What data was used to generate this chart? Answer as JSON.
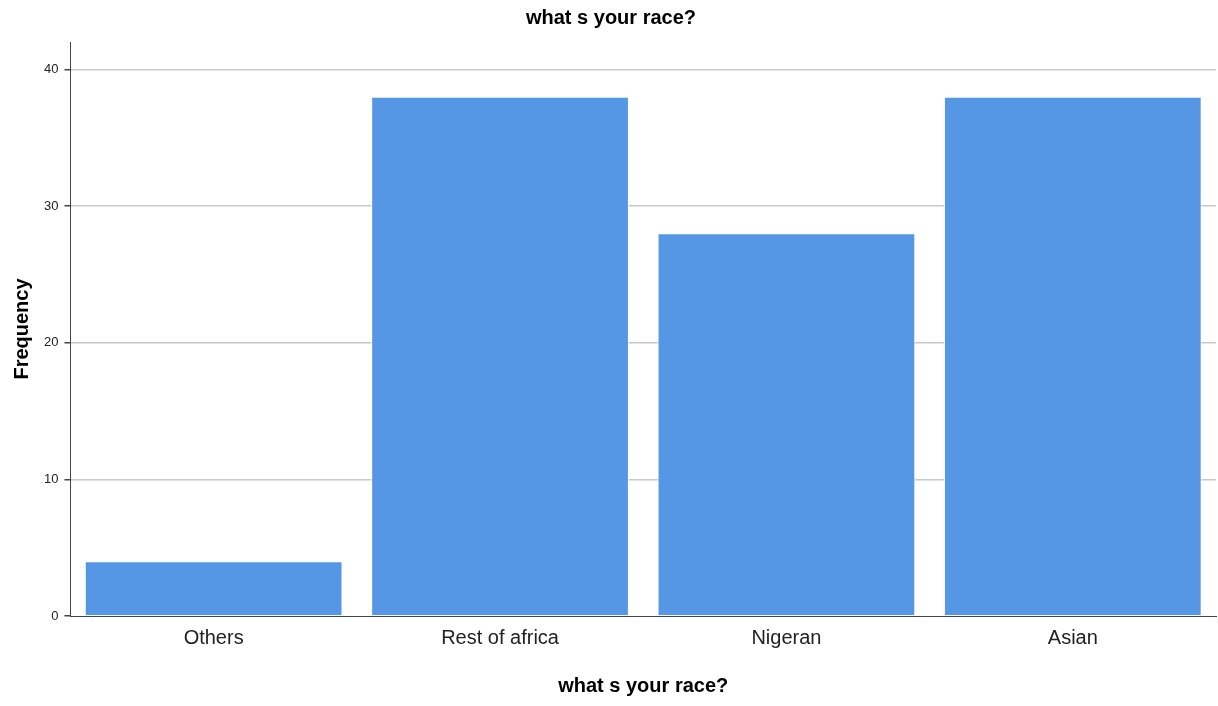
{
  "chart_data": {
    "type": "bar",
    "title": "what s your race?",
    "xlabel": "what s your race?",
    "ylabel": "Frequency",
    "categories": [
      "Others",
      "Rest of africa",
      "Nigeran",
      "Asian"
    ],
    "values": [
      4,
      38,
      28,
      38
    ],
    "color": "#5597e4",
    "ylim": [
      0,
      42
    ],
    "yticks": [
      0,
      10,
      20,
      30,
      40
    ],
    "grid": "y"
  }
}
